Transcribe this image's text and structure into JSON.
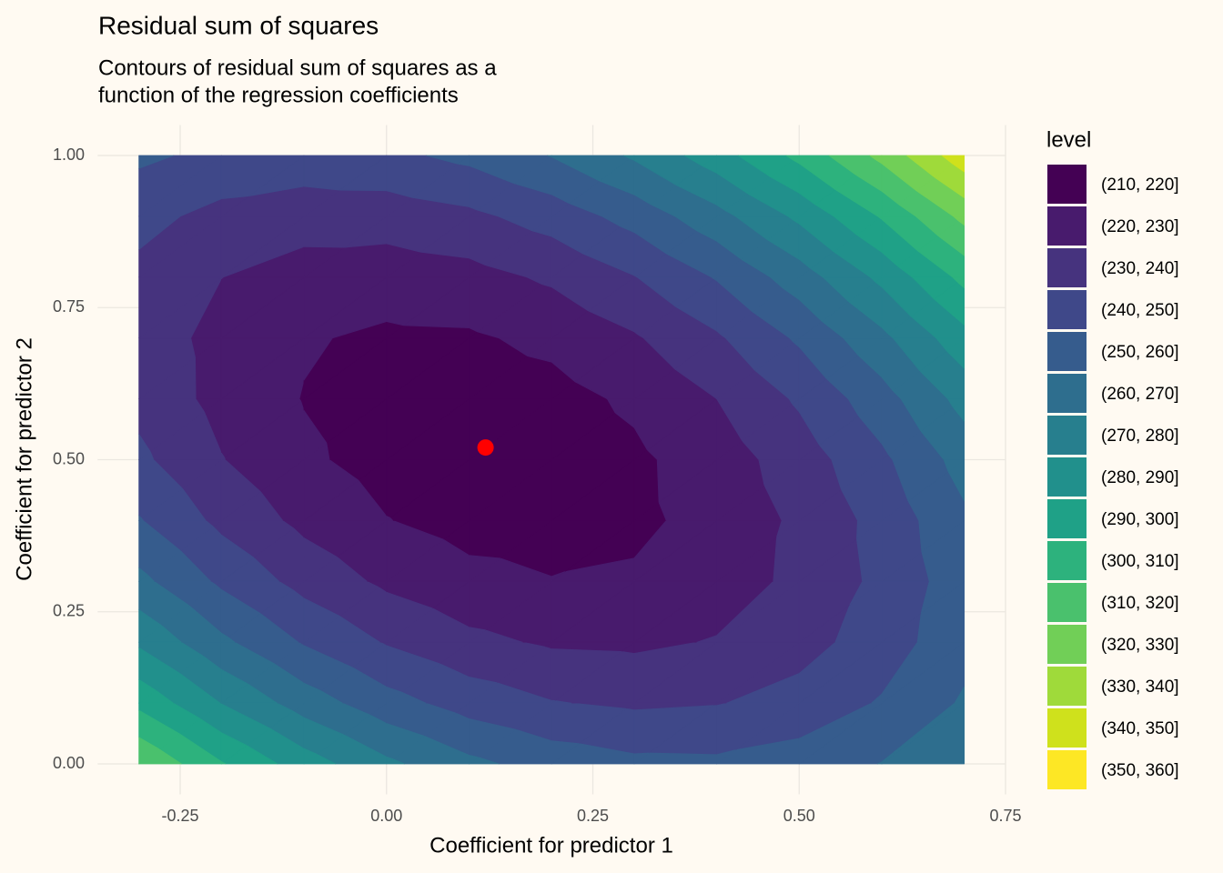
{
  "chart_data": {
    "type": "filled_contour",
    "title": "Residual sum of squares",
    "subtitle": [
      "Contours of residual sum of squares as a",
      "function of the regression coefficients"
    ],
    "x_label": "Coefficient for predictor 1",
    "y_label": "Coefficient for predictor 2",
    "xlim": [
      -0.35,
      0.75
    ],
    "ylim": [
      -0.05,
      1.05
    ],
    "xticks": [
      {
        "value": -0.25,
        "label": "-0.25"
      },
      {
        "value": 0,
        "label": "0.00"
      },
      {
        "value": 0.25,
        "label": "0.25"
      },
      {
        "value": 0.5,
        "label": "0.50"
      },
      {
        "value": 0.75,
        "label": "0.75"
      }
    ],
    "yticks": [
      {
        "value": 0,
        "label": "0.00"
      },
      {
        "value": 0.25,
        "label": "0.25"
      },
      {
        "value": 0.5,
        "label": "0.50"
      },
      {
        "value": 0.75,
        "label": "0.75"
      },
      {
        "value": 1,
        "label": "1.00"
      }
    ],
    "grid": true,
    "x": [
      -0.3,
      -0.2,
      -0.1,
      0,
      0.1,
      0.2,
      0.3,
      0.4,
      0.5,
      0.6,
      0.7
    ],
    "y": [
      0,
      0.1,
      0.2,
      0.3,
      0.4,
      0.5,
      0.6,
      0.7,
      0.8,
      0.9,
      1
    ],
    "z": [
      [
        319.8,
        300.8,
        284.9,
        272.1,
        262.4,
        255.8,
        252.3,
        251.9,
        254.6,
        260.3,
        269.2
      ],
      [
        297.3,
        279.7,
        265.3,
        253.9,
        245.7,
        240.5,
        238.4,
        239.5,
        243.6,
        250.9,
        261.2
      ],
      [
        278.3,
        262.1,
        249.1,
        239.2,
        232.4,
        228.7,
        228.1,
        230.6,
        236.2,
        244.9,
        256.7
      ],
      [
        262.7,
        248.1,
        236.5,
        228.0,
        222.7,
        220.4,
        221.3,
        225.2,
        232.2,
        242.4,
        255.6
      ],
      [
        250.7,
        237.5,
        227.4,
        220.3,
        216.4,
        215.6,
        217.9,
        223.3,
        231.8,
        243.4,
        258.1
      ],
      [
        242.1,
        230.4,
        221.7,
        216.2,
        213.7,
        214.3,
        218.1,
        224.9,
        234.9,
        247.9,
        264.0
      ],
      [
        237.1,
        226.8,
        219.6,
        215.5,
        214.5,
        216.5,
        221.7,
        230.0,
        241.4,
        255.9,
        273.5
      ],
      [
        235.6,
        226.7,
        220.9,
        218.3,
        218.7,
        222.3,
        228.9,
        238.6,
        251.5,
        267.4,
        286.5
      ],
      [
        237.5,
        230.1,
        225.8,
        224.6,
        226.5,
        231.5,
        239.6,
        250.7,
        265.0,
        282.4,
        302.9
      ],
      [
        243.0,
        237.0,
        234.2,
        234.4,
        237.7,
        244.2,
        253.7,
        266.4,
        282.1,
        300.9,
        322.9
      ],
      [
        251.9,
        247.4,
        246.0,
        247.7,
        252.5,
        260.4,
        271.4,
        285.5,
        302.7,
        322.9,
        346.3
      ]
    ],
    "breaks": [
      210,
      220,
      230,
      240,
      250,
      260,
      270,
      280,
      290,
      300,
      310,
      320,
      330,
      340,
      350,
      360
    ],
    "legend": {
      "title": "level",
      "labels": [
        "(210, 220]",
        "(220, 230]",
        "(230, 240]",
        "(240, 250]",
        "(250, 260]",
        "(260, 270]",
        "(270, 280]",
        "(280, 290]",
        "(290, 300]",
        "(300, 310]",
        "(310, 320]",
        "(320, 330]",
        "(330, 340]",
        "(340, 350]",
        "(350, 360]"
      ],
      "colors": [
        "#440154",
        "#481B6D",
        "#46337E",
        "#3F4889",
        "#365C8D",
        "#2E6E8E",
        "#277F8E",
        "#21908C",
        "#1FA187",
        "#2DB27D",
        "#4AC16D",
        "#71CF57",
        "#9FDA3A",
        "#CFE11C",
        "#FDE725"
      ]
    },
    "point": {
      "x": 0.12,
      "y": 0.52,
      "color": "#FF0000"
    }
  }
}
